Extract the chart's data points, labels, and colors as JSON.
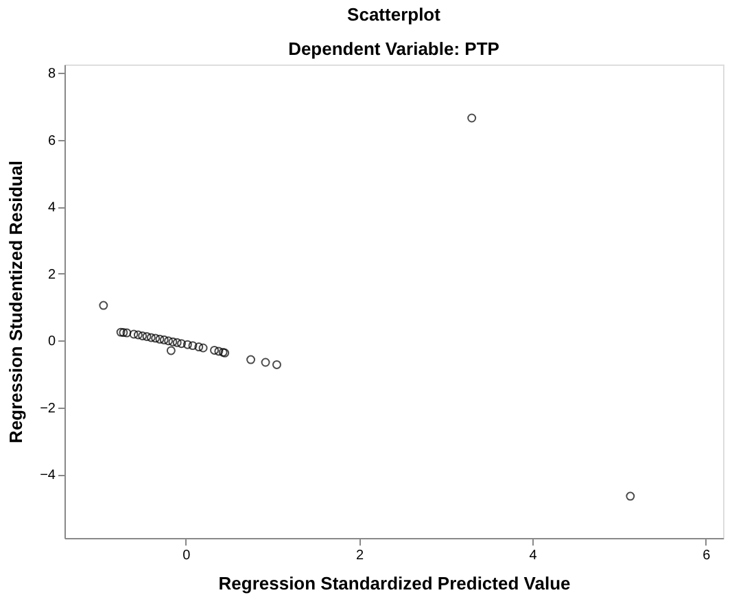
{
  "chart_data": {
    "type": "scatter",
    "title": "Scatterplot",
    "subtitle": "Dependent Variable: PTP",
    "xlabel": "Regression Standardized Predicted Value",
    "ylabel": "Regression Studentized Residual",
    "x": [
      -0.95,
      -0.75,
      -0.72,
      -0.68,
      -0.6,
      -0.55,
      -0.5,
      -0.45,
      -0.4,
      -0.35,
      -0.3,
      -0.25,
      -0.2,
      -0.17,
      -0.15,
      -0.1,
      -0.05,
      0.02,
      0.08,
      0.15,
      0.2,
      0.33,
      0.38,
      0.43,
      0.45,
      0.75,
      0.92,
      1.05,
      3.3,
      5.13
    ],
    "series": [
      {
        "color": "#000000",
        "values": [
          1.05,
          0.25,
          0.24,
          0.23,
          0.19,
          0.17,
          0.14,
          0.12,
          0.09,
          0.07,
          0.04,
          0.02,
          -0.01,
          -0.3,
          -0.04,
          -0.06,
          -0.09,
          -0.12,
          -0.15,
          -0.19,
          -0.22,
          -0.29,
          -0.32,
          -0.35,
          -0.37,
          -0.57,
          -0.65,
          -0.72,
          6.65,
          -4.65
        ]
      }
    ],
    "xlim": [
      -1.4,
      6.2
    ],
    "ylim": [
      -5.9,
      8.25
    ],
    "xticks": [
      0,
      2,
      4,
      6
    ],
    "yticks": [
      -4,
      -2,
      0,
      2,
      4,
      6,
      8
    ],
    "marker": "circle",
    "grid": false,
    "legend": false
  }
}
